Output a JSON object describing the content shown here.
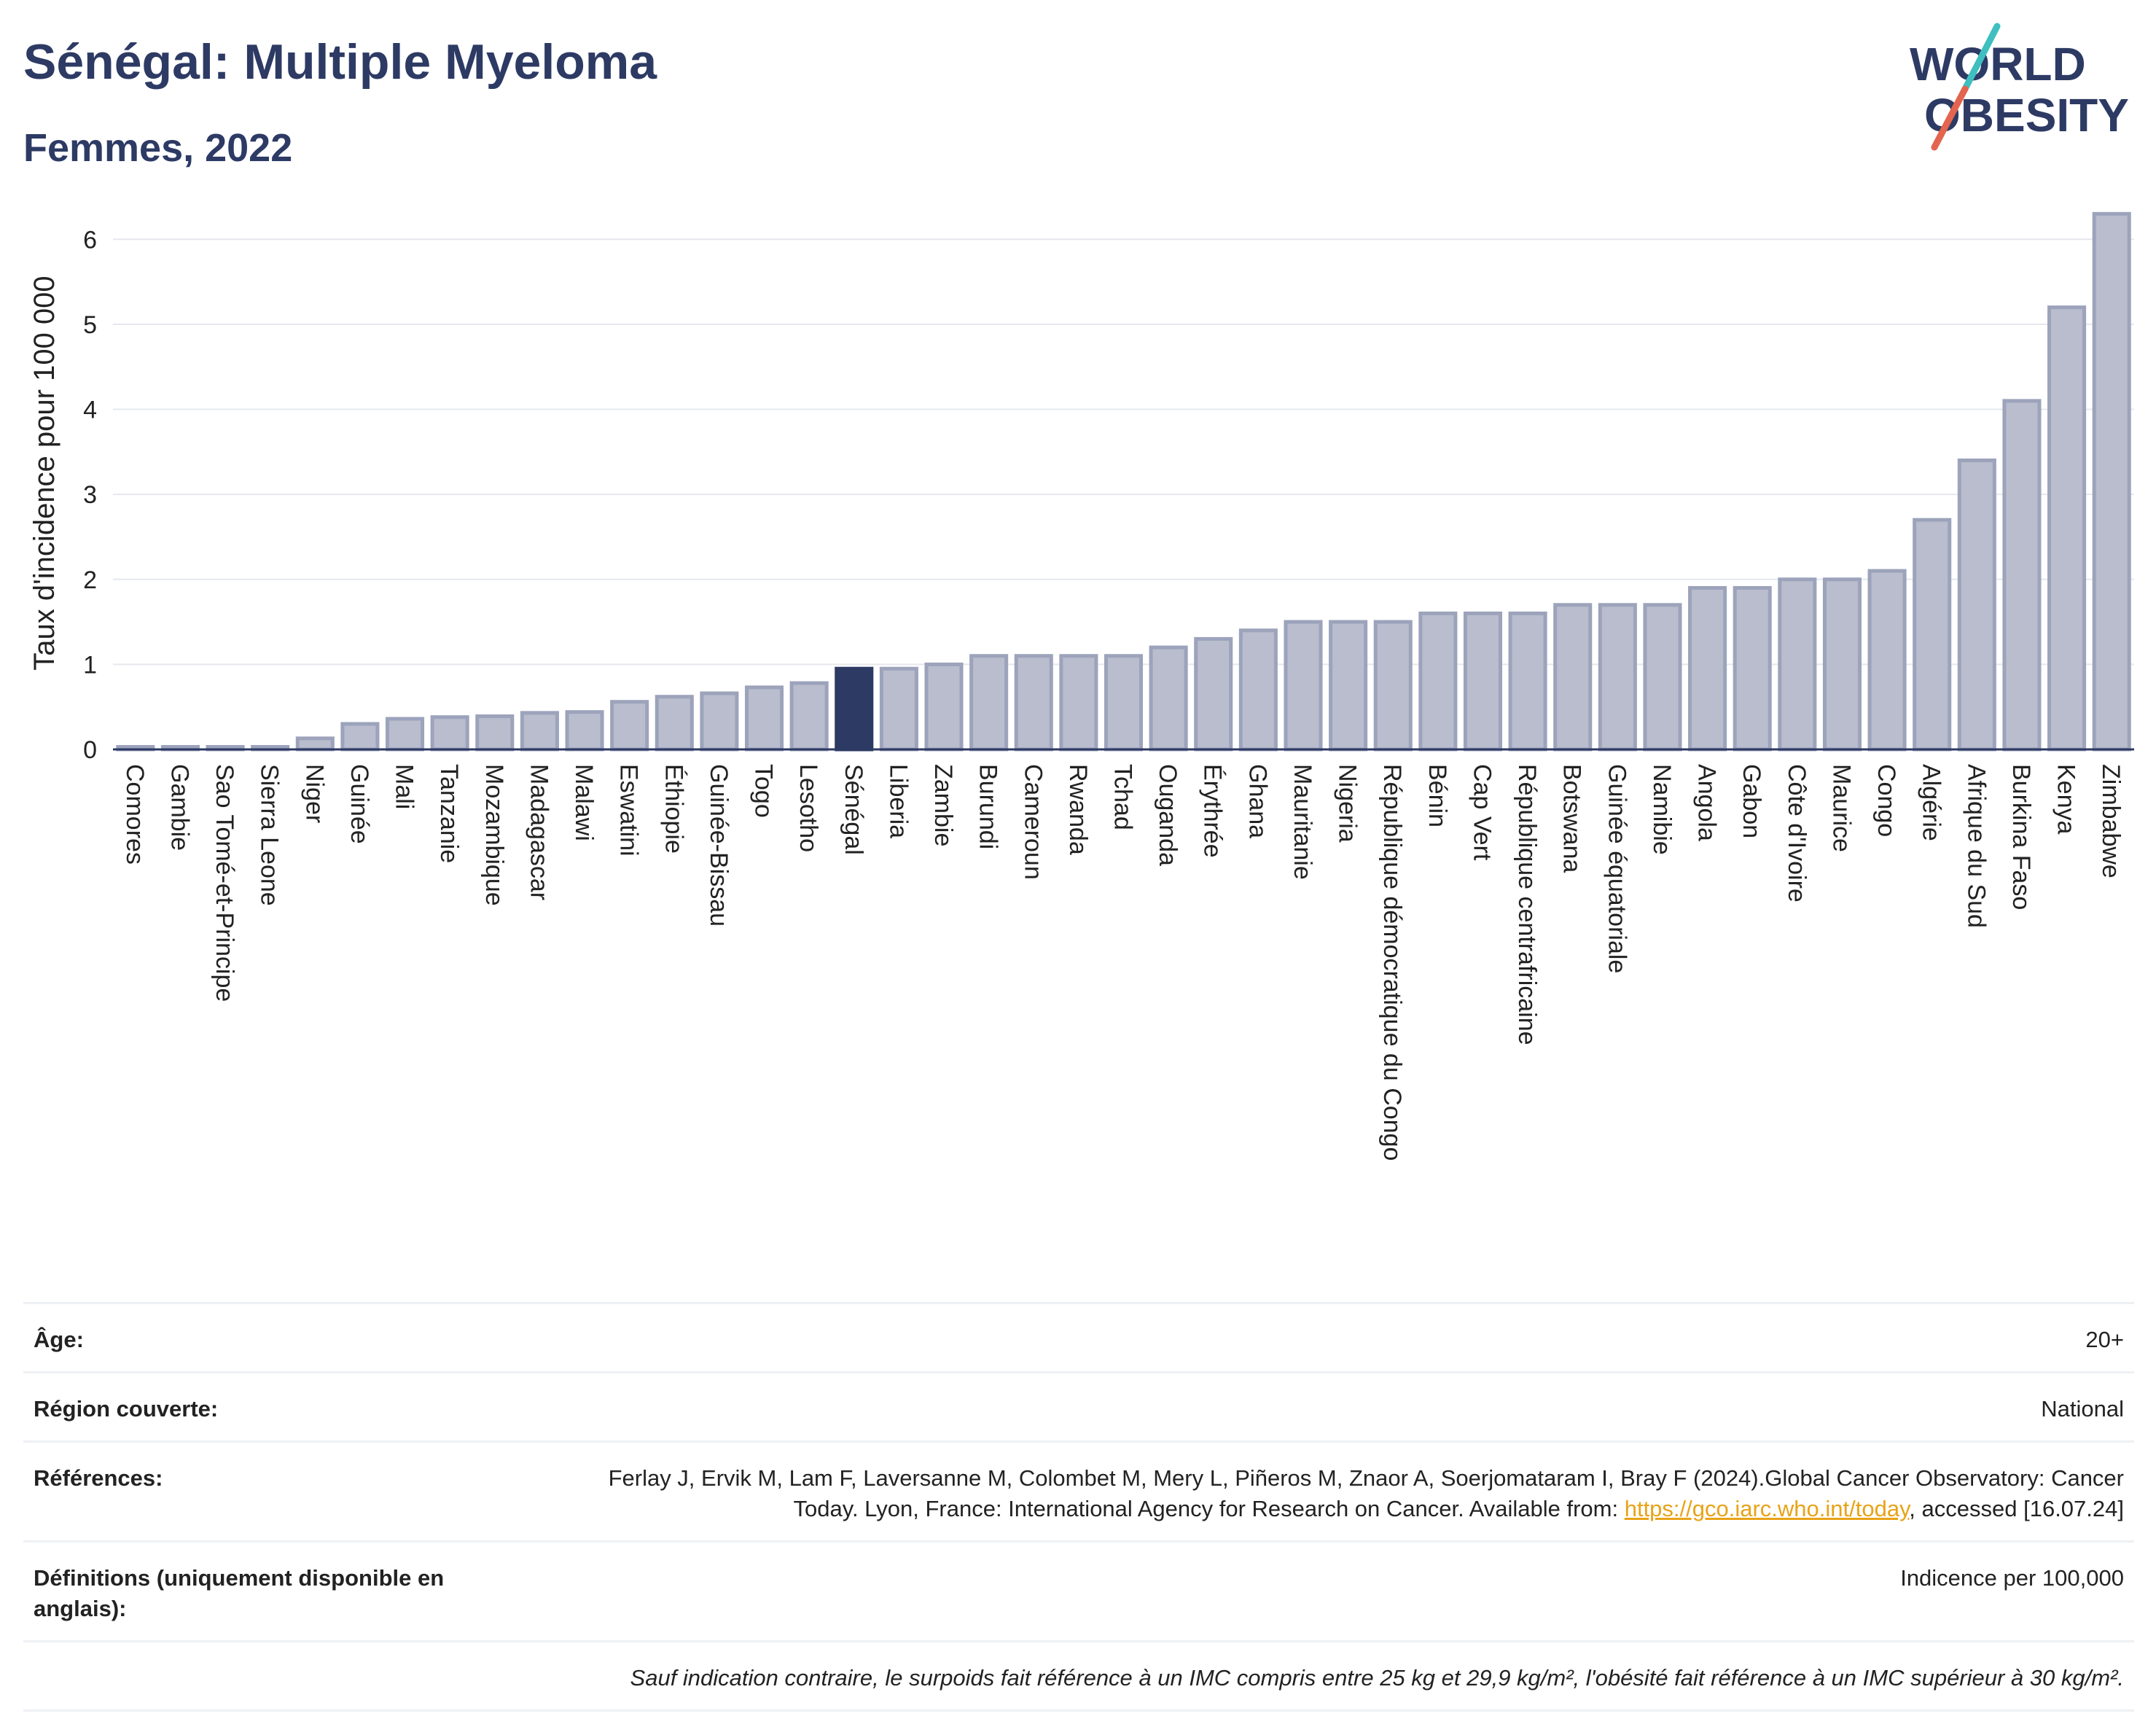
{
  "header": {
    "title": "Sénégal: Multiple Myeloma",
    "subtitle": "Femmes, 2022"
  },
  "logo": {
    "line1": "WORLD",
    "line2": "OBESITY",
    "colors": {
      "text": "#2d3a64",
      "slash_top": "#3fbfbf",
      "slash_bottom": "#e3644f"
    }
  },
  "chart_data": {
    "type": "bar",
    "title": "Sénégal: Multiple Myeloma",
    "subtitle": "Femmes, 2022",
    "xlabel": "",
    "ylabel": "Taux d'incidence pour 100 000",
    "ylim": [
      0,
      6.5
    ],
    "yticks": [
      0,
      1,
      2,
      3,
      4,
      5,
      6
    ],
    "grid": true,
    "highlight": "Sénégal",
    "colors": {
      "bar": "#b9bdcd",
      "bar_border": "#9ca3bb",
      "highlight": "#2d3a64",
      "axis": "#2d3a64",
      "grid": "#e6e8ee"
    },
    "categories": [
      "Comores",
      "Gambie",
      "Sao Tomé-et-Principe",
      "Sierra Leone",
      "Niger",
      "Guinée",
      "Mali",
      "Tanzanie",
      "Mozambique",
      "Madagascar",
      "Malawi",
      "Eswatini",
      "Éthiopie",
      "Guinée-Bissau",
      "Togo",
      "Lesotho",
      "Sénégal",
      "Liberia",
      "Zambie",
      "Burundi",
      "Cameroun",
      "Rwanda",
      "Tchad",
      "Ouganda",
      "Érythrée",
      "Ghana",
      "Mauritanie",
      "Nigeria",
      "République démocratique du Congo",
      "Bénin",
      "Cap Vert",
      "République centrafricaine",
      "Botswana",
      "Guinée équatoriale",
      "Namibie",
      "Angola",
      "Gabon",
      "Côte d'Ivoire",
      "Maurice",
      "Congo",
      "Algérie",
      "Afrique du Sud",
      "Burkina Faso",
      "Kenya",
      "Zimbabwe"
    ],
    "values": [
      0.03,
      0.03,
      0.03,
      0.03,
      0.13,
      0.3,
      0.36,
      0.38,
      0.39,
      0.43,
      0.44,
      0.56,
      0.62,
      0.66,
      0.73,
      0.78,
      0.95,
      0.95,
      1.0,
      1.1,
      1.1,
      1.1,
      1.1,
      1.2,
      1.3,
      1.4,
      1.5,
      1.5,
      1.5,
      1.6,
      1.6,
      1.6,
      1.7,
      1.7,
      1.7,
      1.9,
      1.9,
      2.0,
      2.0,
      2.1,
      2.7,
      3.4,
      4.1,
      5.2,
      6.3
    ]
  },
  "meta": {
    "age_label": "Âge:",
    "age_value": "20+",
    "region_label": "Région couverte:",
    "region_value": "National",
    "refs_label": "Références:",
    "refs_text_1": "Ferlay J, Ervik M, Lam F, Laversanne M, Colombet M, Mery L, Piñeros M, Znaor A, Soerjomataram I, Bray F (2024).Global Cancer Observatory: Cancer Today. Lyon, France: International Agency for Research on Cancer. Available from: ",
    "refs_link": "https://gco.iarc.who.int/today",
    "refs_text_2": ", accessed [16.07.24]",
    "defs_label": "Définitions (uniquement disponible en anglais):",
    "defs_value": "Indicence per 100,000",
    "note": "Sauf indication contraire, le surpoids fait référence à un IMC compris entre 25 kg et 29,9 kg/m², l'obésité fait référence à un IMC supérieur à 30 kg/m²."
  }
}
